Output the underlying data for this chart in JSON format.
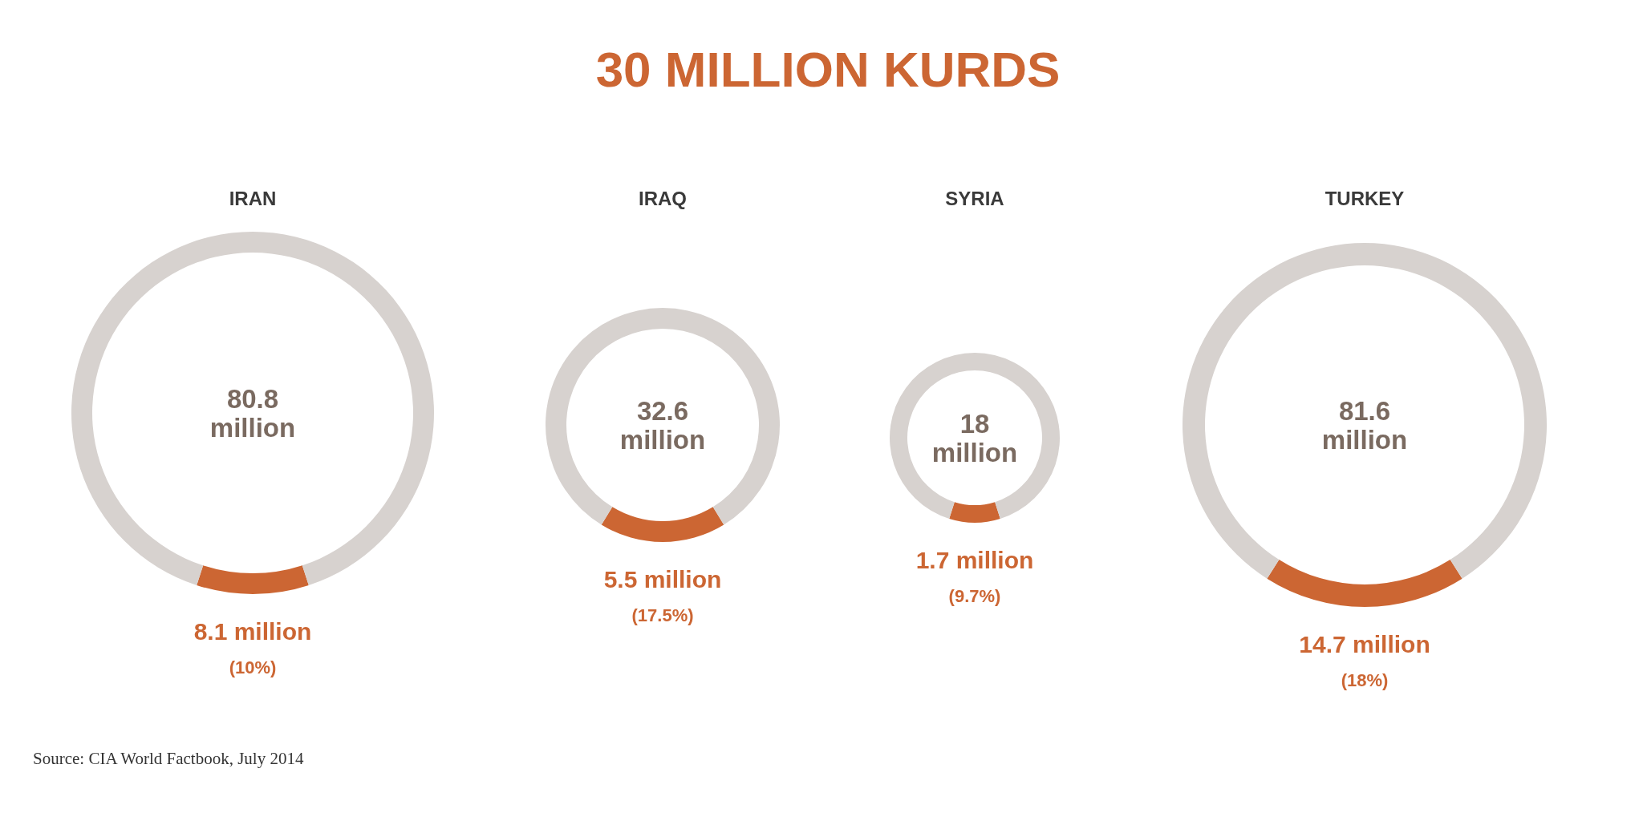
{
  "chart_data": [
    {
      "type": "other",
      "title": "30 MILLION KURDS",
      "annotations": [
        "Source:  CIA World Factbook, July 2014"
      ]
    },
    {
      "type": "donut",
      "title": "IRAN",
      "categories": [
        null,
        null
      ],
      "values": [
        10,
        90
      ],
      "colors": [
        "#cc6633",
        "#d7d2cf"
      ],
      "annotations": [
        "80.8 million",
        "8.1 million",
        "(10%)"
      ]
    },
    {
      "type": "donut",
      "title": "IRAQ",
      "categories": [
        null,
        null
      ],
      "values": [
        17.5,
        82.5
      ],
      "colors": [
        "#cc6633",
        "#d7d2cf"
      ],
      "annotations": [
        "32.6 million",
        "5.5 million",
        "(17.5%)"
      ]
    },
    {
      "type": "donut",
      "title": "SYRIA",
      "categories": [
        null,
        null
      ],
      "values": [
        9.7,
        90.3
      ],
      "colors": [
        "#cc6633",
        "#d7d2cf"
      ],
      "annotations": [
        "18 million",
        "1.7 million",
        "(9.7%)"
      ]
    },
    {
      "type": "donut",
      "title": "TURKEY",
      "categories": [
        null,
        null
      ],
      "values": [
        18,
        82
      ],
      "colors": [
        "#cc6633",
        "#d7d2cf"
      ],
      "annotations": [
        "81.6 million",
        "14.7 million",
        "(18%)"
      ]
    }
  ]
}
